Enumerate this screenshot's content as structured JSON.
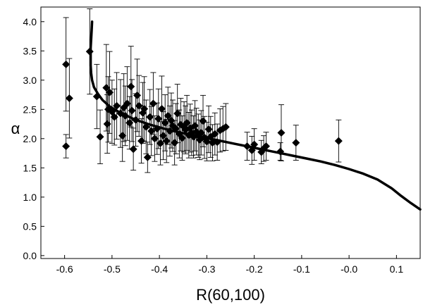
{
  "chart_data": {
    "type": "scatter",
    "title": "",
    "xlabel": "R(60,100)",
    "ylabel": "α",
    "xlim": [
      -0.65,
      0.15
    ],
    "ylim": [
      -0.05,
      4.25
    ],
    "x_ticks": [
      "-0.6",
      "-0.5",
      "-0.4",
      "-0.3",
      "-0.2",
      "-0.1",
      "-0.0",
      "0.1"
    ],
    "y_ticks": [
      "0.0",
      "0.5",
      "1.0",
      "1.5",
      "2.0",
      "2.5",
      "3.0",
      "3.5",
      "4.0"
    ],
    "x_tick_values": [
      -0.6,
      -0.5,
      -0.4,
      -0.3,
      -0.2,
      -0.1,
      0.0,
      0.1
    ],
    "y_tick_values": [
      0.0,
      0.5,
      1.0,
      1.5,
      2.0,
      2.5,
      3.0,
      3.5,
      4.0
    ],
    "grid": false,
    "legend": "none",
    "marker": "diamond",
    "marker_color": "#000000",
    "series": [
      {
        "kind": "points",
        "x": [
          -0.597,
          -0.597,
          -0.59,
          -0.547,
          -0.532,
          -0.525,
          -0.512,
          -0.51,
          -0.508,
          -0.505,
          -0.5,
          -0.495,
          -0.49,
          -0.482,
          -0.478,
          -0.475,
          -0.472,
          -0.468,
          -0.463,
          -0.46,
          -0.458,
          -0.455,
          -0.45,
          -0.447,
          -0.443,
          -0.438,
          -0.435,
          -0.432,
          -0.428,
          -0.425,
          -0.42,
          -0.417,
          -0.413,
          -0.41,
          -0.405,
          -0.402,
          -0.398,
          -0.395,
          -0.392,
          -0.388,
          -0.385,
          -0.382,
          -0.378,
          -0.375,
          -0.372,
          -0.368,
          -0.365,
          -0.362,
          -0.358,
          -0.355,
          -0.352,
          -0.348,
          -0.345,
          -0.342,
          -0.338,
          -0.335,
          -0.332,
          -0.328,
          -0.325,
          -0.322,
          -0.318,
          -0.315,
          -0.312,
          -0.308,
          -0.305,
          -0.3,
          -0.296,
          -0.292,
          -0.288,
          -0.283,
          -0.278,
          -0.272,
          -0.266,
          -0.26,
          -0.215,
          -0.205,
          -0.2,
          -0.185,
          -0.18,
          -0.175,
          -0.145,
          -0.143,
          -0.112,
          -0.022
        ],
        "y": [
          1.87,
          3.27,
          2.69,
          3.49,
          2.72,
          2.03,
          2.87,
          2.25,
          2.5,
          2.79,
          2.46,
          2.37,
          2.56,
          2.43,
          2.05,
          2.53,
          2.39,
          2.6,
          2.27,
          2.89,
          2.48,
          1.82,
          2.32,
          2.74,
          2.56,
          1.96,
          2.44,
          2.51,
          2.2,
          1.68,
          2.37,
          2.13,
          2.6,
          2.0,
          2.17,
          2.34,
          1.92,
          2.51,
          2.05,
          2.27,
          1.96,
          2.39,
          2.13,
          2.31,
          2.22,
          1.93,
          2.17,
          2.43,
          2.08,
          2.24,
          2.01,
          2.2,
          2.15,
          2.27,
          2.06,
          2.18,
          2.1,
          2.03,
          2.22,
          2.12,
          2.05,
          1.98,
          2.1,
          2.3,
          2.02,
          1.95,
          2.16,
          2.03,
          1.93,
          2.08,
          1.94,
          2.14,
          2.17,
          2.2,
          1.87,
          1.8,
          1.9,
          1.77,
          1.83,
          1.87,
          1.78,
          2.1,
          1.93,
          1.96
        ],
        "y_err": [
          0.2,
          0.8,
          0.68,
          0.73,
          0.55,
          0.46,
          0.74,
          0.5,
          0.56,
          0.7,
          0.54,
          0.48,
          0.57,
          0.58,
          0.44,
          0.58,
          0.51,
          0.63,
          0.45,
          0.69,
          0.53,
          0.36,
          0.45,
          0.62,
          0.52,
          0.38,
          0.52,
          0.55,
          0.46,
          0.26,
          0.47,
          0.42,
          0.53,
          0.39,
          0.44,
          0.51,
          0.37,
          0.56,
          0.41,
          0.48,
          0.37,
          0.49,
          0.43,
          0.47,
          0.44,
          0.38,
          0.43,
          0.5,
          0.41,
          0.45,
          0.38,
          0.43,
          0.41,
          0.47,
          0.39,
          0.41,
          0.39,
          0.36,
          0.43,
          0.4,
          0.37,
          0.34,
          0.38,
          0.44,
          0.36,
          0.33,
          0.4,
          0.35,
          0.31,
          0.36,
          0.31,
          0.37,
          0.38,
          0.4,
          0.24,
          0.24,
          0.27,
          0.2,
          0.22,
          0.24,
          0.15,
          0.48,
          0.3,
          0.36
        ]
      },
      {
        "kind": "curve",
        "x": [
          -0.542,
          -0.543,
          -0.544,
          -0.545,
          -0.545,
          -0.545,
          -0.544,
          -0.542,
          -0.538,
          -0.53,
          -0.52,
          -0.505,
          -0.48,
          -0.45,
          -0.42,
          -0.39,
          -0.36,
          -0.33,
          -0.3,
          -0.27,
          -0.24,
          -0.21,
          -0.18,
          -0.15,
          -0.12,
          -0.09,
          -0.06,
          -0.03,
          0.0,
          0.03,
          0.06,
          0.09,
          0.11,
          0.13,
          0.15
        ],
        "y": [
          4.0,
          3.85,
          3.7,
          3.55,
          3.4,
          3.25,
          3.12,
          3.0,
          2.88,
          2.77,
          2.66,
          2.55,
          2.43,
          2.32,
          2.24,
          2.17,
          2.11,
          2.06,
          2.01,
          1.96,
          1.91,
          1.86,
          1.81,
          1.76,
          1.71,
          1.66,
          1.61,
          1.55,
          1.48,
          1.4,
          1.3,
          1.15,
          1.02,
          0.9,
          0.79
        ]
      }
    ]
  }
}
